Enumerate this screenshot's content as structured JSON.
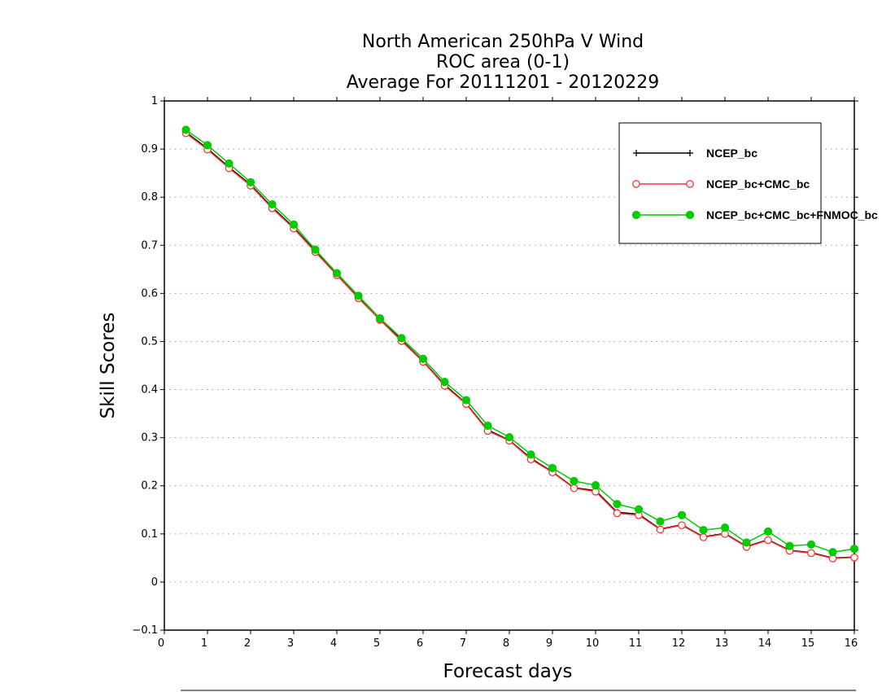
{
  "chart_data": {
    "type": "line",
    "title_lines": [
      "North American 250hPa V Wind",
      "ROC area (0-1)",
      "Average For 20111201 - 20120229"
    ],
    "xlabel": "Forecast days",
    "ylabel": "Skill Scores",
    "xlim": [
      0,
      16
    ],
    "ylim": [
      -0.1,
      1
    ],
    "x_ticks": [
      "0",
      "1",
      "2",
      "3",
      "4",
      "5",
      "6",
      "7",
      "8",
      "9",
      "10",
      "11",
      "12",
      "13",
      "14",
      "15",
      "16"
    ],
    "y_ticks": [
      "−0.1",
      "0",
      "0.1",
      "0.2",
      "0.3",
      "0.4",
      "0.5",
      "0.6",
      "0.7",
      "0.8",
      "0.9",
      "1"
    ],
    "grid": "horizontal dotted",
    "legend_position": "top-right",
    "x": [
      0.5,
      1,
      1.5,
      2,
      2.5,
      3,
      3.5,
      4,
      4.5,
      5,
      5.5,
      6,
      6.5,
      7,
      7.5,
      8,
      8.5,
      9,
      9.5,
      10,
      10.5,
      11,
      11.5,
      12,
      12.5,
      13,
      13.5,
      14,
      14.5,
      15,
      15.5,
      16
    ],
    "series": [
      {
        "name": "NCEP_bc",
        "color": "#000000",
        "marker": "plus",
        "values": [
          0.935,
          0.901,
          0.862,
          0.826,
          0.779,
          0.737,
          0.688,
          0.639,
          0.591,
          0.546,
          0.503,
          0.459,
          0.41,
          0.371,
          0.316,
          0.295,
          0.257,
          0.229,
          0.196,
          0.19,
          0.145,
          0.141,
          0.11,
          0.119,
          0.094,
          0.101,
          0.074,
          0.088,
          0.066,
          0.061,
          0.05,
          0.052
        ]
      },
      {
        "name": "NCEP_bc+CMC_bc",
        "color": "#ff3333",
        "marker": "open-circle",
        "values": [
          0.933,
          0.899,
          0.86,
          0.824,
          0.777,
          0.735,
          0.686,
          0.638,
          0.59,
          0.545,
          0.501,
          0.458,
          0.408,
          0.37,
          0.314,
          0.294,
          0.255,
          0.228,
          0.195,
          0.188,
          0.143,
          0.139,
          0.109,
          0.118,
          0.093,
          0.1,
          0.073,
          0.087,
          0.065,
          0.06,
          0.049,
          0.051
        ]
      },
      {
        "name": "NCEP_bc+CMC_bc+FNMOC_bc",
        "color": "#00cc00",
        "marker": "filled-circle",
        "values": [
          0.94,
          0.908,
          0.87,
          0.831,
          0.785,
          0.743,
          0.691,
          0.642,
          0.595,
          0.548,
          0.507,
          0.464,
          0.416,
          0.378,
          0.325,
          0.301,
          0.265,
          0.237,
          0.21,
          0.201,
          0.162,
          0.151,
          0.126,
          0.139,
          0.108,
          0.113,
          0.082,
          0.105,
          0.075,
          0.078,
          0.062,
          0.069
        ]
      }
    ]
  }
}
